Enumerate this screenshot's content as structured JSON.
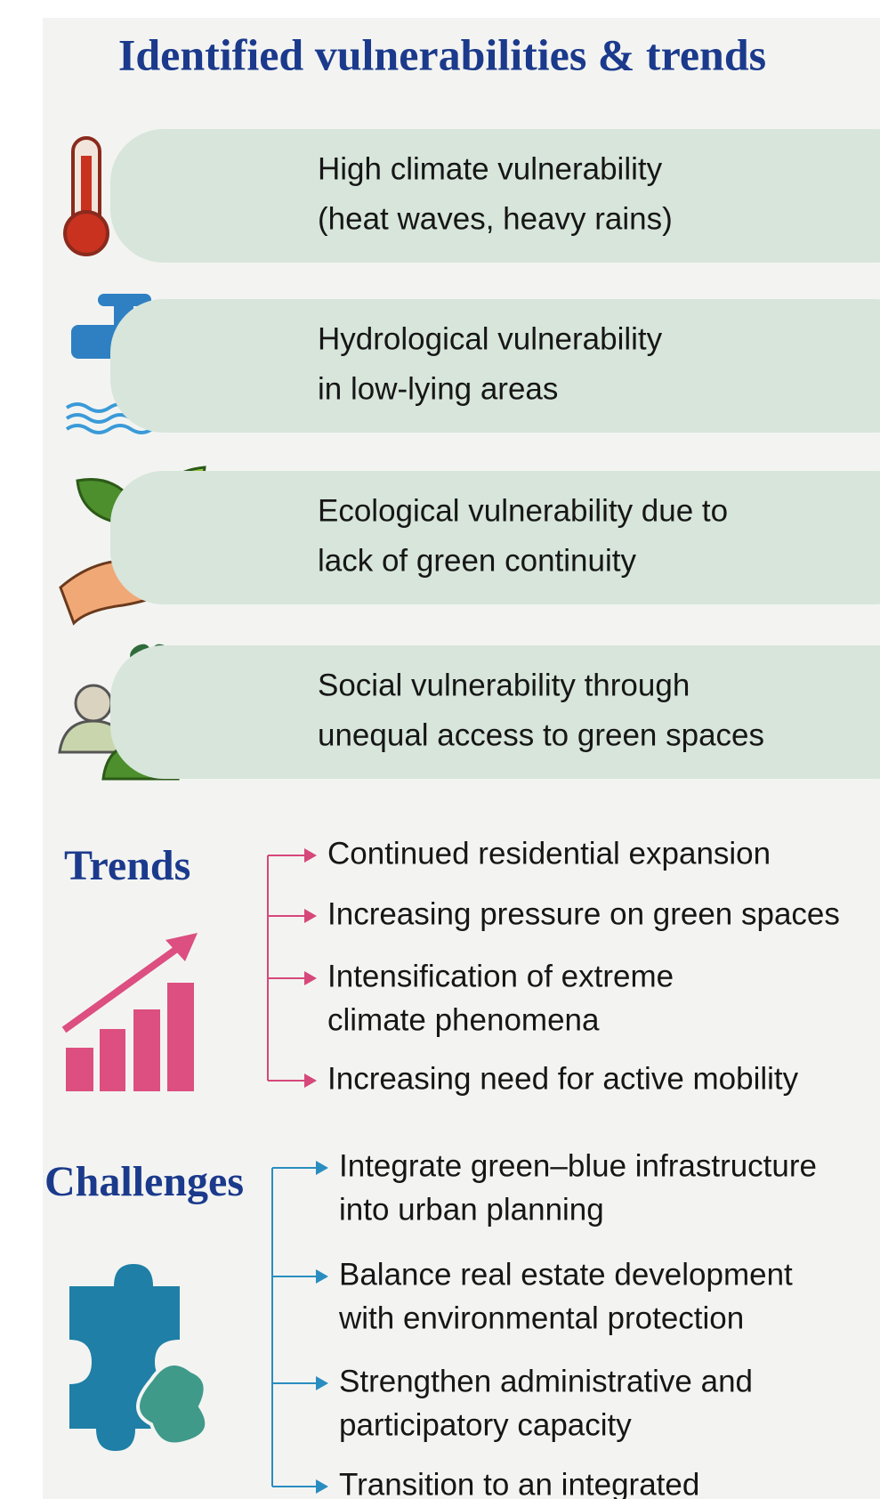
{
  "title": "Identified vulnerabilities & trends",
  "vulnerabilities": [
    {
      "lines": [
        "High climate vulnerability",
        "(heat waves, heavy rains)"
      ]
    },
    {
      "lines": [
        "Hydrological vulnerability",
        "in low-lying areas"
      ]
    },
    {
      "lines": [
        "Ecological vulnerability due to",
        "lack of green continuity"
      ]
    },
    {
      "lines": [
        "Social vulnerability through",
        "unequal access to green spaces"
      ]
    }
  ],
  "trends": {
    "heading": "Trends",
    "items": [
      {
        "lines": [
          "Continued residential expansion"
        ]
      },
      {
        "lines": [
          "Increasing pressure on green spaces"
        ]
      },
      {
        "lines": [
          "Intensification of extreme",
          "climate phenomena"
        ]
      },
      {
        "lines": [
          "Increasing need for active mobility"
        ]
      }
    ]
  },
  "challenges": {
    "heading": "Challenges",
    "items": [
      {
        "lines": [
          "Integrate green–blue infrastructure",
          "into urban planning"
        ]
      },
      {
        "lines": [
          "Balance real estate development",
          "with environmental protection"
        ]
      },
      {
        "lines": [
          "Strengthen administrative and",
          "participatory capacity"
        ]
      },
      {
        "lines": [
          "Transition to an integrated"
        ]
      }
    ]
  }
}
